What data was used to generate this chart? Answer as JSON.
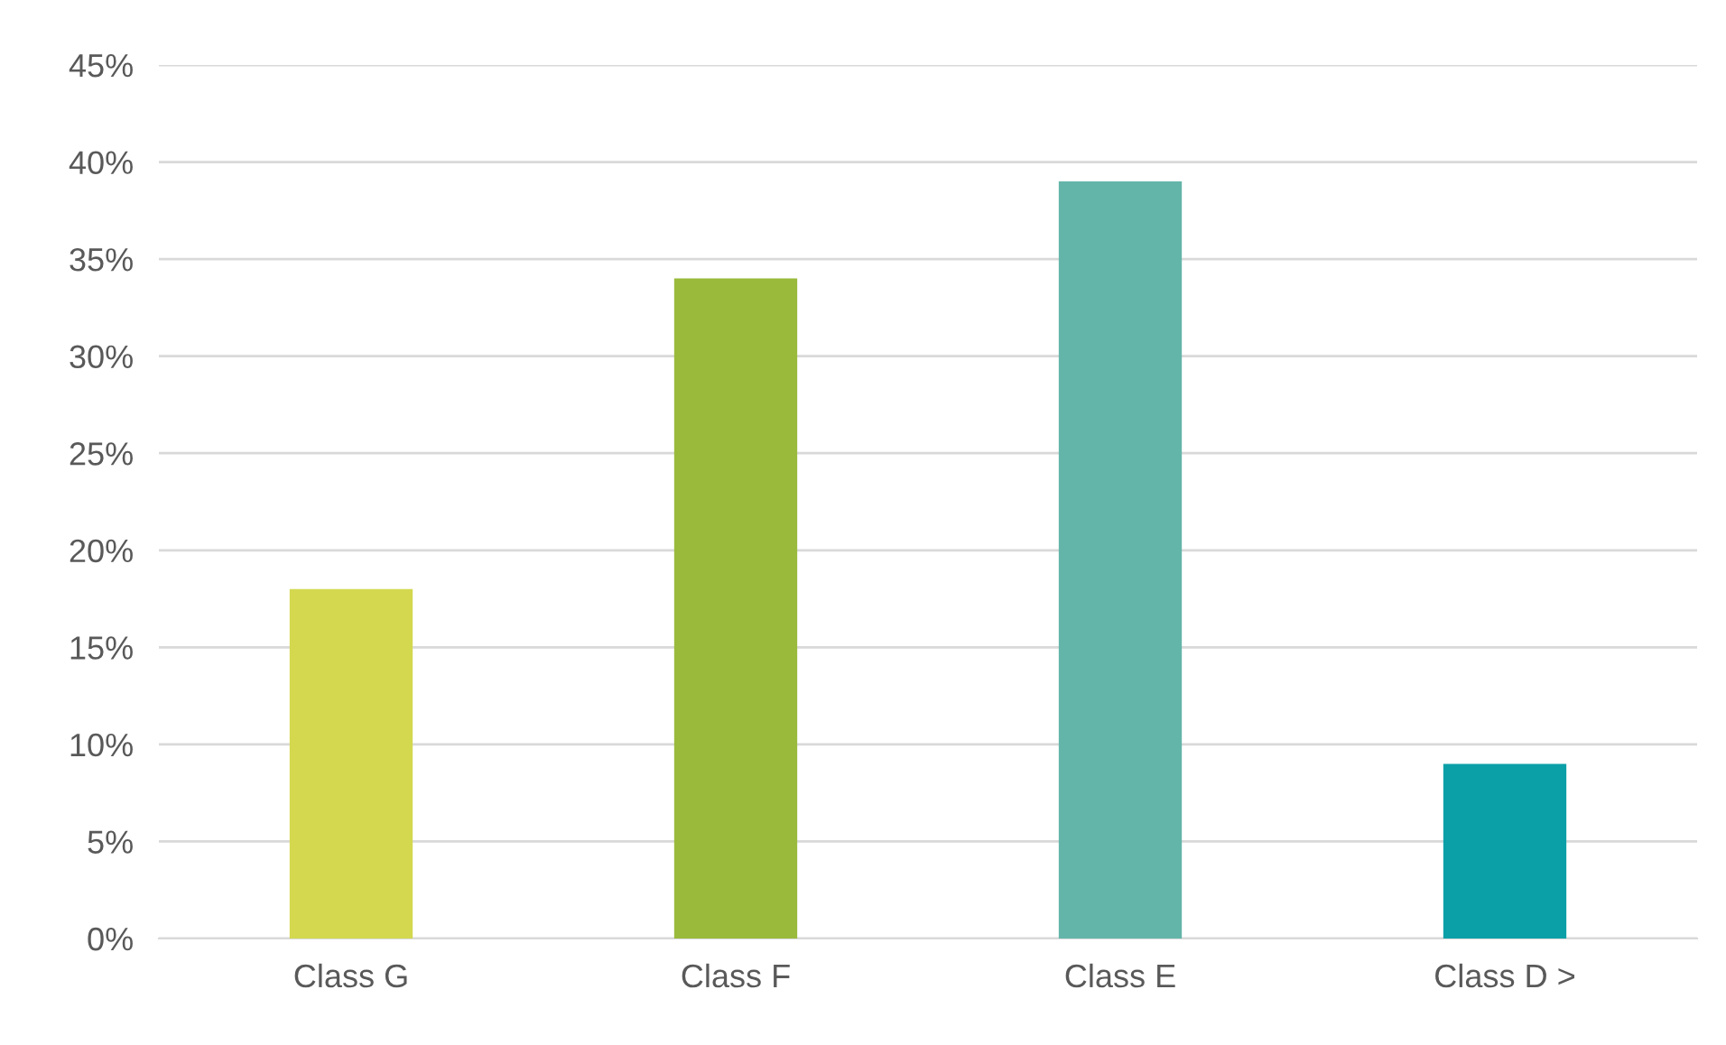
{
  "chart_data": {
    "type": "bar",
    "categories": [
      "Class G",
      "Class F",
      "Class E",
      "Class D >"
    ],
    "values": [
      18,
      34,
      39,
      9
    ],
    "colors": [
      "#d3d84f",
      "#9aba3c",
      "#64b5a9",
      "#0ba0a8"
    ],
    "ylim": [
      0,
      45
    ],
    "yticks": [
      {
        "value": 0,
        "label": "0%"
      },
      {
        "value": 5,
        "label": "5%"
      },
      {
        "value": 10,
        "label": "10%"
      },
      {
        "value": 15,
        "label": "15%"
      },
      {
        "value": 20,
        "label": "20%"
      },
      {
        "value": 25,
        "label": "25%"
      },
      {
        "value": 30,
        "label": "30%"
      },
      {
        "value": 35,
        "label": "35%"
      },
      {
        "value": 40,
        "label": "40%"
      },
      {
        "value": 45,
        "label": "45%"
      }
    ],
    "grid": "y",
    "legend": false
  }
}
